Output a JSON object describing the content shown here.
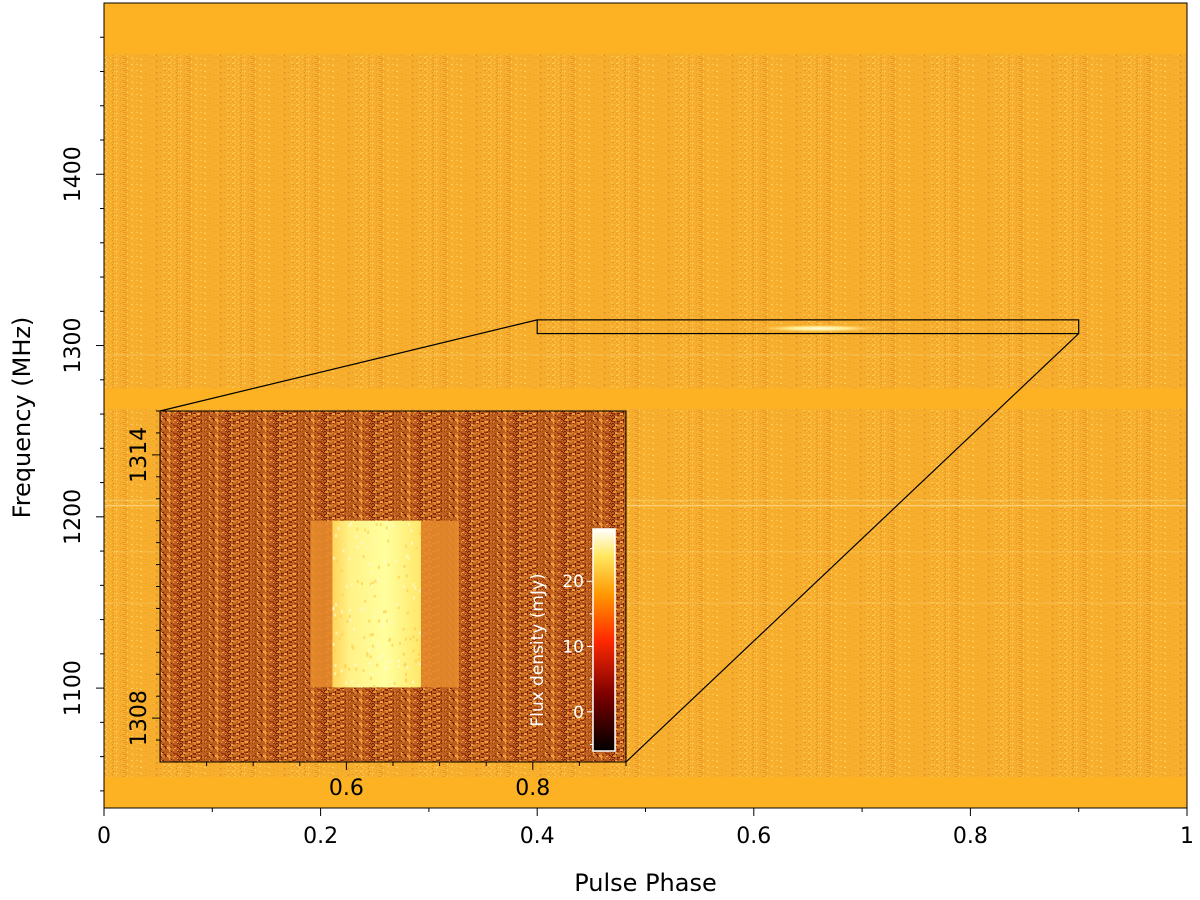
{
  "chart_data": [
    {
      "type": "heatmap",
      "panel": "main",
      "xlabel": "Pulse Phase",
      "ylabel": "Frequency (MHz)",
      "xlim": [
        0,
        1
      ],
      "ylim": [
        1030,
        1500
      ],
      "x_ticks": [
        0,
        0.2,
        0.4,
        0.6,
        0.8,
        1
      ],
      "x_tick_labels": [
        "0",
        "0.2",
        "0.4",
        "0.6",
        "0.8",
        "1"
      ],
      "y_ticks": [
        1100,
        1200,
        1300,
        1400
      ],
      "y_tick_labels": [
        "1100",
        "1200",
        "1300",
        "1400"
      ],
      "masked_bands_mhz": [
        [
          1030,
          1048
        ],
        [
          1263,
          1275
        ],
        [
          1470,
          1500
        ]
      ],
      "pulse_region": {
        "phase": [
          0.61,
          0.71
        ],
        "frequency_mhz": [
          1308.5,
          1311.5
        ]
      },
      "zoom_box": {
        "phase": [
          0.4,
          0.9
        ],
        "frequency_mhz": [
          1307,
          1315
        ]
      },
      "colormap": "afmhot",
      "masked_color": "#fcb223"
    },
    {
      "type": "heatmap",
      "panel": "inset",
      "xlim": [
        0.4,
        0.9
      ],
      "ylim": [
        1307,
        1315
      ],
      "x_ticks": [
        0.6,
        0.8
      ],
      "x_tick_labels": [
        "0.6",
        "0.8"
      ],
      "y_ticks": [
        1308,
        1314
      ],
      "y_tick_labels": [
        "1308",
        "1314"
      ],
      "pulse_region": {
        "phase": [
          0.585,
          0.68
        ],
        "frequency_mhz": [
          1308.7,
          1312.5
        ]
      },
      "colorbar": {
        "label": "Flux density (mJy)",
        "range": [
          -6,
          28
        ],
        "ticks": [
          0,
          10,
          20
        ],
        "tick_labels": [
          "0",
          "10",
          "20"
        ],
        "colormap": "afmhot"
      }
    }
  ]
}
